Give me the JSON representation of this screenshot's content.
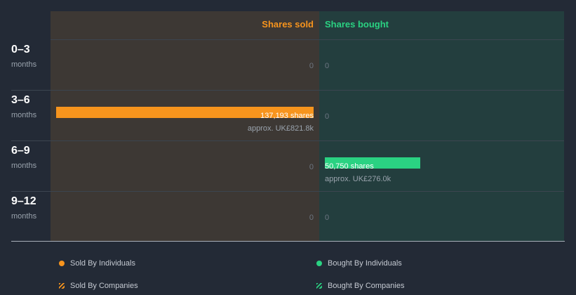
{
  "chart_data": {
    "type": "bar",
    "orientation": "horizontal-diverging",
    "columns": {
      "sold": {
        "title": "Shares sold",
        "color": "#f7941d"
      },
      "bought": {
        "title": "Shares bought",
        "color": "#2ad282"
      }
    },
    "rows": [
      {
        "label": "0–3",
        "sublabel": "months",
        "sold": {
          "shares": 0,
          "text": "0"
        },
        "bought": {
          "shares": 0,
          "text": "0"
        }
      },
      {
        "label": "3–6",
        "sublabel": "months",
        "sold": {
          "shares": 137193,
          "text": "137,193 shares",
          "approx": "approx. UK£821.8k"
        },
        "bought": {
          "shares": 0,
          "text": "0"
        }
      },
      {
        "label": "6–9",
        "sublabel": "months",
        "sold": {
          "shares": 0,
          "text": "0"
        },
        "bought": {
          "shares": 50750,
          "text": "50,750 shares",
          "approx": "approx. UK£276.0k"
        }
      },
      {
        "label": "9–12",
        "sublabel": "months",
        "sold": {
          "shares": 0,
          "text": "0"
        },
        "bought": {
          "shares": 0,
          "text": "0"
        }
      }
    ],
    "max_shares": 137193,
    "legend": [
      {
        "label": "Sold By Individuals",
        "marker": "dot",
        "color": "#f7941d"
      },
      {
        "label": "Bought By Individuals",
        "marker": "dot",
        "color": "#2ad282"
      },
      {
        "label": "Sold By Companies",
        "marker": "hatch",
        "color": "#f7941d"
      },
      {
        "label": "Bought By Companies",
        "marker": "hatch",
        "color": "#2ad282"
      }
    ]
  }
}
